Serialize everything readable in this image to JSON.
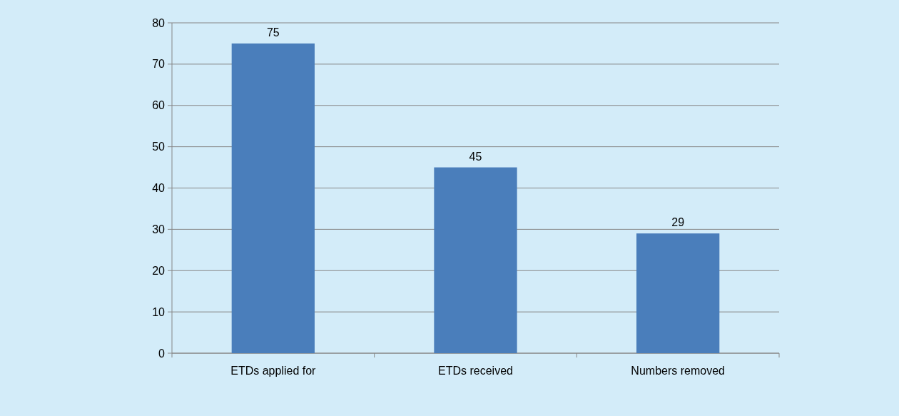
{
  "chart_data": {
    "type": "bar",
    "categories": [
      "ETDs applied for",
      "ETDs received",
      "Numbers removed"
    ],
    "values": [
      75,
      45,
      29
    ],
    "color": "#4a7ebb",
    "ylim": [
      0,
      80
    ],
    "yticks": [
      0,
      10,
      20,
      30,
      40,
      50,
      60,
      70,
      80
    ],
    "grid": "y",
    "data_labels": true
  }
}
